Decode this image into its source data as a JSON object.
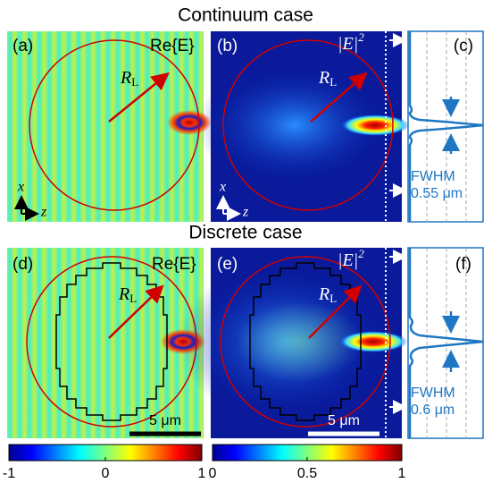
{
  "titles": {
    "top": "Continuum case",
    "bottom": "Discrete case"
  },
  "panels": {
    "a": {
      "label": "(a)",
      "quantity": "Re{E}",
      "radius": "R",
      "radius_sub": "L",
      "axis_x": "x",
      "axis_z": "z"
    },
    "b": {
      "label": "(b)",
      "quantity": "|E|",
      "quantity_sup": "2",
      "radius": "R",
      "radius_sub": "L",
      "axis_x": "x",
      "axis_z": "z"
    },
    "c": {
      "label": "(c)",
      "fwhm": "FWHM",
      "fwhm_value": "0.55 μm"
    },
    "d": {
      "label": "(d)",
      "quantity": "Re{E}",
      "radius": "R",
      "radius_sub": "L",
      "scale": "5 μm"
    },
    "e": {
      "label": "(e)",
      "quantity": "|E|",
      "quantity_sup": "2",
      "radius": "R",
      "radius_sub": "L",
      "scale": "5 μm"
    },
    "f": {
      "label": "(f)",
      "fwhm": "FWHM",
      "fwhm_value": "0.6 μm"
    }
  },
  "colorbars": [
    {
      "ticks": [
        -1,
        0,
        1
      ]
    },
    {
      "ticks": [
        0,
        0.5,
        1
      ]
    }
  ]
}
